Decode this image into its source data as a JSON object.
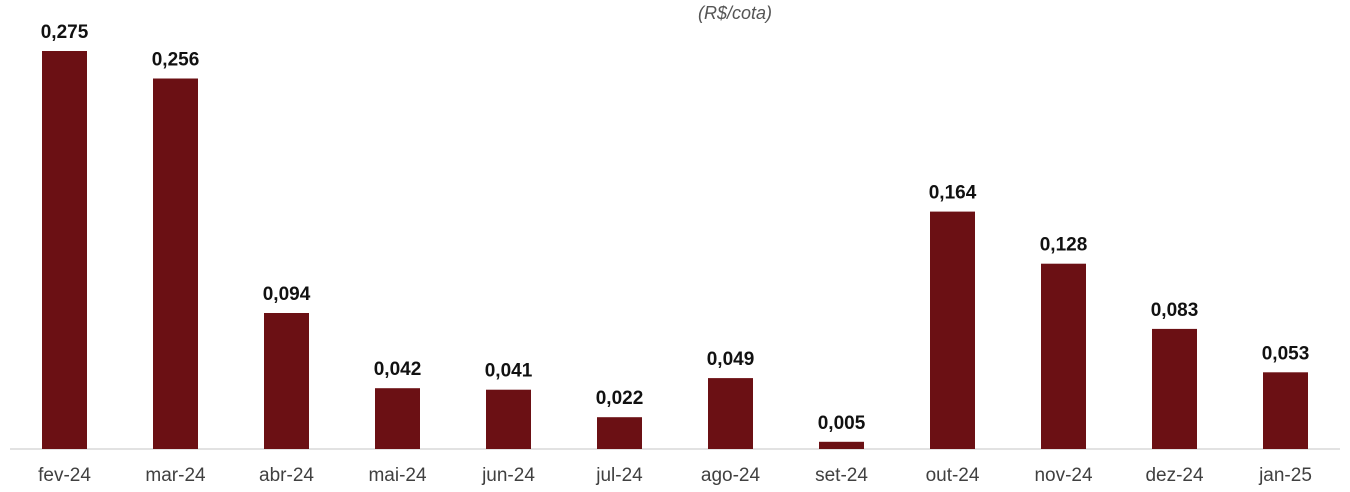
{
  "chart_data": {
    "type": "bar",
    "subtitle": "(R$/cota)",
    "categories": [
      "fev-24",
      "mar-24",
      "abr-24",
      "mai-24",
      "jun-24",
      "jul-24",
      "ago-24",
      "set-24",
      "out-24",
      "nov-24",
      "dez-24",
      "jan-25"
    ],
    "values": [
      0.275,
      0.256,
      0.094,
      0.042,
      0.041,
      0.022,
      0.049,
      0.005,
      0.164,
      0.128,
      0.083,
      0.053
    ],
    "value_labels": [
      "0,275",
      "0,256",
      "0,094",
      "0,042",
      "0,041",
      "0,022",
      "0,049",
      "0,005",
      "0,164",
      "0,128",
      "0,083",
      "0,053"
    ],
    "xlabel": "",
    "ylabel": "",
    "ylim": [
      0,
      0.275
    ],
    "grid": false,
    "legend": "none",
    "bar_color": "#6B1014",
    "axis_color": "#D9D9D9"
  }
}
